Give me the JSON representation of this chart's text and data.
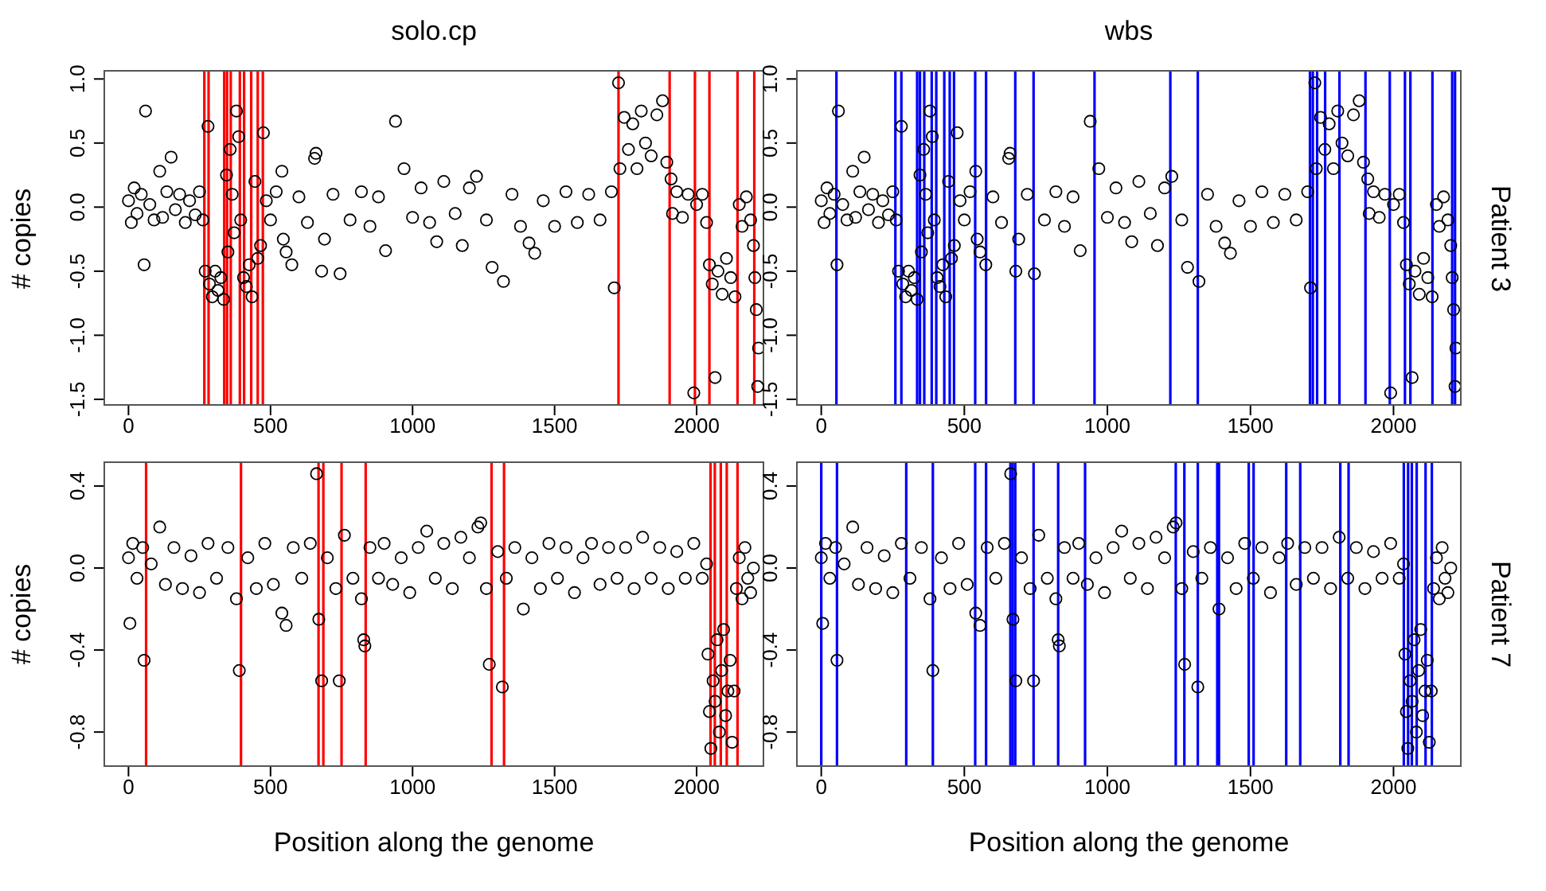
{
  "chart_data": [
    {
      "type": "scatter",
      "title": "solo.cp",
      "ylabel": "# copies",
      "marker": "circle",
      "color": "#000000",
      "x": [
        0,
        10,
        20,
        30,
        45,
        55,
        60,
        75,
        90,
        110,
        120,
        135,
        150,
        165,
        180,
        200,
        215,
        235,
        250,
        262,
        270,
        280,
        285,
        295,
        305,
        315,
        325,
        335,
        345,
        350,
        358,
        365,
        372,
        380,
        388,
        395,
        405,
        415,
        425,
        435,
        445,
        455,
        465,
        475,
        485,
        500,
        520,
        540,
        545,
        555,
        575,
        600,
        630,
        655,
        660,
        680,
        690,
        720,
        745,
        780,
        820,
        850,
        880,
        905,
        940,
        970,
        1000,
        1030,
        1060,
        1085,
        1110,
        1150,
        1175,
        1200,
        1225,
        1260,
        1280,
        1320,
        1350,
        1380,
        1410,
        1430,
        1460,
        1500,
        1540,
        1580,
        1620,
        1660,
        1700,
        1710,
        1725,
        1730,
        1745,
        1760,
        1775,
        1790,
        1805,
        1820,
        1840,
        1860,
        1880,
        1895,
        1910,
        1915,
        1930,
        1950,
        1970,
        1990,
        2000,
        2020,
        2035,
        2045,
        2055,
        2065,
        2075,
        2090,
        2105,
        2120,
        2135,
        2150,
        2160,
        2175,
        2190,
        2200,
        2205,
        2210,
        2215,
        2218
      ],
      "values": [
        0.05,
        -0.12,
        0.15,
        -0.05,
        0.1,
        -0.45,
        0.75,
        0.02,
        -0.1,
        0.28,
        -0.08,
        0.12,
        0.39,
        -0.02,
        0.1,
        -0.12,
        0.05,
        -0.06,
        0.12,
        -0.1,
        -0.5,
        0.63,
        -0.6,
        -0.7,
        -0.5,
        -0.65,
        -0.55,
        -0.72,
        0.25,
        -0.35,
        0.45,
        0.1,
        -0.2,
        0.75,
        0.55,
        -0.1,
        -0.55,
        -0.62,
        -0.45,
        -0.7,
        0.2,
        -0.4,
        -0.3,
        0.58,
        0.05,
        -0.1,
        0.12,
        0.28,
        -0.25,
        -0.35,
        -0.45,
        0.08,
        -0.12,
        0.38,
        0.42,
        -0.5,
        -0.25,
        0.1,
        -0.52,
        -0.1,
        0.12,
        -0.15,
        0.08,
        -0.34,
        0.67,
        0.3,
        -0.08,
        0.15,
        -0.12,
        -0.27,
        0.2,
        -0.05,
        -0.3,
        0.15,
        0.24,
        -0.1,
        -0.47,
        -0.58,
        0.1,
        -0.15,
        -0.28,
        -0.36,
        0.05,
        -0.15,
        0.12,
        -0.12,
        0.1,
        -0.1,
        0.12,
        -0.63,
        0.97,
        0.3,
        0.7,
        0.45,
        0.65,
        0.3,
        0.75,
        0.5,
        0.4,
        0.72,
        0.83,
        0.35,
        0.22,
        -0.05,
        0.12,
        -0.08,
        0.1,
        -1.45,
        0.02,
        0.1,
        -0.12,
        -0.45,
        -0.6,
        -1.33,
        -0.5,
        -0.68,
        -0.4,
        -0.55,
        -0.7,
        0.02,
        -0.15,
        0.08,
        -0.1,
        -0.3,
        -0.55,
        -0.8,
        -1.4,
        -1.1
      ],
      "xlim": [
        -88,
        2238
      ],
      "xticks": [
        0,
        500,
        1000,
        1500,
        2000
      ],
      "ylim": [
        -1.55,
        1.07
      ],
      "yticks": [
        {
          "value": -1.5,
          "label": "-1.5"
        },
        {
          "value": -1,
          "label": "-1.0"
        },
        {
          "value": -0.5,
          "label": "-0.5"
        },
        {
          "value": 0,
          "label": "0.0"
        },
        {
          "value": 0.5,
          "label": "0.5"
        },
        {
          "value": 1,
          "label": "1.0"
        }
      ],
      "ref_lines": [
        {
          "axis": "x",
          "value": 267,
          "color": "#ff0000"
        },
        {
          "axis": "x",
          "value": 282,
          "color": "#ff0000"
        },
        {
          "axis": "x",
          "value": 337,
          "color": "#ff0000"
        },
        {
          "axis": "x",
          "value": 347,
          "color": "#ff0000"
        },
        {
          "axis": "x",
          "value": 360,
          "color": "#ff0000"
        },
        {
          "axis": "x",
          "value": 392,
          "color": "#ff0000"
        },
        {
          "axis": "x",
          "value": 407,
          "color": "#ff0000"
        },
        {
          "axis": "x",
          "value": 432,
          "color": "#ff0000"
        },
        {
          "axis": "x",
          "value": 455,
          "color": "#ff0000"
        },
        {
          "axis": "x",
          "value": 473,
          "color": "#ff0000"
        },
        {
          "axis": "x",
          "value": 1725,
          "color": "#ff0000"
        },
        {
          "axis": "x",
          "value": 1905,
          "color": "#ff0000"
        },
        {
          "axis": "x",
          "value": 1994,
          "color": "#ff0000"
        },
        {
          "axis": "x",
          "value": 2045,
          "color": "#ff0000"
        },
        {
          "axis": "x",
          "value": 2144,
          "color": "#ff0000"
        },
        {
          "axis": "x",
          "value": 2203,
          "color": "#ff0000"
        }
      ]
    },
    {
      "type": "scatter",
      "title": "wbs",
      "annotations": [
        "Patient 3"
      ],
      "marker": "circle",
      "color": "#000000",
      "x": [
        0,
        10,
        20,
        30,
        45,
        55,
        60,
        75,
        90,
        110,
        120,
        135,
        150,
        165,
        180,
        200,
        215,
        235,
        250,
        262,
        270,
        280,
        285,
        295,
        305,
        315,
        325,
        335,
        345,
        350,
        358,
        365,
        372,
        380,
        388,
        395,
        405,
        415,
        425,
        435,
        445,
        455,
        465,
        475,
        485,
        500,
        520,
        540,
        545,
        555,
        575,
        600,
        630,
        655,
        660,
        680,
        690,
        720,
        745,
        780,
        820,
        850,
        880,
        905,
        940,
        970,
        1000,
        1030,
        1060,
        1085,
        1110,
        1150,
        1175,
        1200,
        1225,
        1260,
        1280,
        1320,
        1350,
        1380,
        1410,
        1430,
        1460,
        1500,
        1540,
        1580,
        1620,
        1660,
        1700,
        1710,
        1725,
        1730,
        1745,
        1760,
        1775,
        1790,
        1805,
        1820,
        1840,
        1860,
        1880,
        1895,
        1910,
        1915,
        1930,
        1950,
        1970,
        1990,
        2000,
        2020,
        2035,
        2045,
        2055,
        2065,
        2075,
        2090,
        2105,
        2120,
        2135,
        2150,
        2160,
        2175,
        2190,
        2200,
        2205,
        2210,
        2215,
        2218
      ],
      "values": [
        0.05,
        -0.12,
        0.15,
        -0.05,
        0.1,
        -0.45,
        0.75,
        0.02,
        -0.1,
        0.28,
        -0.08,
        0.12,
        0.39,
        -0.02,
        0.1,
        -0.12,
        0.05,
        -0.06,
        0.12,
        -0.1,
        -0.5,
        0.63,
        -0.6,
        -0.7,
        -0.5,
        -0.65,
        -0.55,
        -0.72,
        0.25,
        -0.35,
        0.45,
        0.1,
        -0.2,
        0.75,
        0.55,
        -0.1,
        -0.55,
        -0.62,
        -0.45,
        -0.7,
        0.2,
        -0.4,
        -0.3,
        0.58,
        0.05,
        -0.1,
        0.12,
        0.28,
        -0.25,
        -0.35,
        -0.45,
        0.08,
        -0.12,
        0.38,
        0.42,
        -0.5,
        -0.25,
        0.1,
        -0.52,
        -0.1,
        0.12,
        -0.15,
        0.08,
        -0.34,
        0.67,
        0.3,
        -0.08,
        0.15,
        -0.12,
        -0.27,
        0.2,
        -0.05,
        -0.3,
        0.15,
        0.24,
        -0.1,
        -0.47,
        -0.58,
        0.1,
        -0.15,
        -0.28,
        -0.36,
        0.05,
        -0.15,
        0.12,
        -0.12,
        0.1,
        -0.1,
        0.12,
        -0.63,
        0.97,
        0.3,
        0.7,
        0.45,
        0.65,
        0.3,
        0.75,
        0.5,
        0.4,
        0.72,
        0.83,
        0.35,
        0.22,
        -0.05,
        0.12,
        -0.08,
        0.1,
        -1.45,
        0.02,
        0.1,
        -0.12,
        -0.45,
        -0.6,
        -1.33,
        -0.5,
        -0.68,
        -0.4,
        -0.55,
        -0.7,
        0.02,
        -0.15,
        0.08,
        -0.1,
        -0.3,
        -0.55,
        -0.8,
        -1.4,
        -1.1
      ],
      "xlim": [
        -88,
        2238
      ],
      "xticks": [
        0,
        500,
        1000,
        1500,
        2000
      ],
      "ylim": [
        -1.55,
        1.07
      ],
      "yticks": [
        {
          "value": -1.5,
          "label": "-1.5"
        },
        {
          "value": -1,
          "label": "-1.0"
        },
        {
          "value": -0.5,
          "label": "-0.5"
        },
        {
          "value": 0,
          "label": "0.0"
        },
        {
          "value": 0.5,
          "label": "0.5"
        },
        {
          "value": 1,
          "label": "1.0"
        }
      ],
      "ref_lines": [
        {
          "axis": "x",
          "value": 53,
          "color": "#0000ff"
        },
        {
          "axis": "x",
          "value": 259,
          "color": "#0000ff"
        },
        {
          "axis": "x",
          "value": 280,
          "color": "#0000ff"
        },
        {
          "axis": "x",
          "value": 335,
          "color": "#0000ff"
        },
        {
          "axis": "x",
          "value": 345,
          "color": "#0000ff"
        },
        {
          "axis": "x",
          "value": 360,
          "color": "#0000ff"
        },
        {
          "axis": "x",
          "value": 386,
          "color": "#0000ff"
        },
        {
          "axis": "x",
          "value": 402,
          "color": "#0000ff"
        },
        {
          "axis": "x",
          "value": 430,
          "color": "#0000ff"
        },
        {
          "axis": "x",
          "value": 449,
          "color": "#0000ff"
        },
        {
          "axis": "x",
          "value": 464,
          "color": "#0000ff"
        },
        {
          "axis": "x",
          "value": 538,
          "color": "#0000ff"
        },
        {
          "axis": "x",
          "value": 576,
          "color": "#0000ff"
        },
        {
          "axis": "x",
          "value": 678,
          "color": "#0000ff"
        },
        {
          "axis": "x",
          "value": 742,
          "color": "#0000ff"
        },
        {
          "axis": "x",
          "value": 955,
          "color": "#0000ff"
        },
        {
          "axis": "x",
          "value": 1220,
          "color": "#0000ff"
        },
        {
          "axis": "x",
          "value": 1316,
          "color": "#0000ff"
        },
        {
          "axis": "x",
          "value": 1708,
          "color": "#0000ff"
        },
        {
          "axis": "x",
          "value": 1718,
          "color": "#0000ff"
        },
        {
          "axis": "x",
          "value": 1733,
          "color": "#0000ff"
        },
        {
          "axis": "x",
          "value": 1761,
          "color": "#0000ff"
        },
        {
          "axis": "x",
          "value": 1811,
          "color": "#0000ff"
        },
        {
          "axis": "x",
          "value": 1902,
          "color": "#0000ff"
        },
        {
          "axis": "x",
          "value": 1987,
          "color": "#0000ff"
        },
        {
          "axis": "x",
          "value": 2040,
          "color": "#0000ff"
        },
        {
          "axis": "x",
          "value": 2059,
          "color": "#0000ff"
        },
        {
          "axis": "x",
          "value": 2136,
          "color": "#0000ff"
        },
        {
          "axis": "x",
          "value": 2205,
          "color": "#0000ff"
        },
        {
          "axis": "x",
          "value": 2215,
          "color": "#0000ff"
        }
      ]
    },
    {
      "type": "scatter",
      "ylabel": "# copies",
      "xlabel": "Position along the genome",
      "marker": "circle",
      "color": "#000000",
      "x": [
        0,
        5,
        15,
        30,
        50,
        55,
        80,
        110,
        130,
        160,
        190,
        220,
        250,
        280,
        310,
        350,
        380,
        390,
        420,
        450,
        480,
        510,
        540,
        555,
        580,
        610,
        640,
        662,
        670,
        680,
        700,
        730,
        742,
        760,
        790,
        820,
        828,
        832,
        850,
        880,
        900,
        930,
        960,
        990,
        1020,
        1050,
        1080,
        1110,
        1140,
        1170,
        1200,
        1230,
        1240,
        1260,
        1270,
        1300,
        1316,
        1330,
        1360,
        1390,
        1420,
        1450,
        1480,
        1510,
        1540,
        1570,
        1600,
        1630,
        1660,
        1690,
        1720,
        1750,
        1780,
        1810,
        1840,
        1870,
        1900,
        1930,
        1960,
        1990,
        2020,
        2035,
        2040,
        2045,
        2050,
        2058,
        2065,
        2072,
        2080,
        2088,
        2095,
        2102,
        2110,
        2118,
        2125,
        2132,
        2140,
        2150,
        2160,
        2170,
        2180,
        2190,
        2200
      ],
      "values": [
        0.05,
        -0.27,
        0.12,
        -0.05,
        0.1,
        -0.45,
        0.02,
        0.2,
        -0.08,
        0.1,
        -0.1,
        0.06,
        -0.12,
        0.12,
        -0.05,
        0.1,
        -0.15,
        -0.5,
        0.05,
        -0.1,
        0.12,
        -0.08,
        -0.22,
        -0.28,
        0.1,
        -0.05,
        0.12,
        0.46,
        -0.25,
        -0.55,
        0.05,
        -0.1,
        -0.55,
        0.16,
        -0.05,
        -0.15,
        -0.35,
        -0.38,
        0.1,
        -0.05,
        0.12,
        -0.08,
        0.05,
        -0.12,
        0.1,
        0.18,
        -0.05,
        0.12,
        -0.1,
        0.15,
        0.05,
        0.2,
        0.22,
        -0.1,
        -0.47,
        0.08,
        -0.58,
        -0.05,
        0.1,
        -0.2,
        0.05,
        -0.1,
        0.12,
        -0.05,
        0.1,
        -0.12,
        0.05,
        0.12,
        -0.08,
        0.1,
        -0.05,
        0.1,
        -0.1,
        0.15,
        -0.05,
        0.1,
        -0.1,
        0.08,
        -0.05,
        0.12,
        -0.05,
        0.02,
        -0.42,
        -0.7,
        -0.88,
        -0.55,
        -0.65,
        -0.35,
        -0.8,
        -0.5,
        -0.3,
        -0.72,
        -0.6,
        -0.45,
        -0.85,
        -0.6,
        -0.1,
        0.05,
        -0.15,
        0.1,
        -0.05,
        -0.12,
        0
      ],
      "xlim": [
        -88,
        2238
      ],
      "xticks": [
        0,
        500,
        1000,
        1500,
        2000
      ],
      "ylim": [
        -0.97,
        0.52
      ],
      "yticks": [
        {
          "value": -0.8,
          "label": "-0.8"
        },
        {
          "value": -0.4,
          "label": "-0.4"
        },
        {
          "value": 0,
          "label": "0.0"
        },
        {
          "value": 0.4,
          "label": "0.4"
        }
      ],
      "ref_lines": [
        {
          "axis": "x",
          "value": 62,
          "color": "#ff0000"
        },
        {
          "axis": "x",
          "value": 396,
          "color": "#ff0000"
        },
        {
          "axis": "x",
          "value": 669,
          "color": "#ff0000"
        },
        {
          "axis": "x",
          "value": 686,
          "color": "#ff0000"
        },
        {
          "axis": "x",
          "value": 750,
          "color": "#ff0000"
        },
        {
          "axis": "x",
          "value": 835,
          "color": "#ff0000"
        },
        {
          "axis": "x",
          "value": 1278,
          "color": "#ff0000"
        },
        {
          "axis": "x",
          "value": 1322,
          "color": "#ff0000"
        },
        {
          "axis": "x",
          "value": 2049,
          "color": "#ff0000"
        },
        {
          "axis": "x",
          "value": 2064,
          "color": "#ff0000"
        },
        {
          "axis": "x",
          "value": 2085,
          "color": "#ff0000"
        },
        {
          "axis": "x",
          "value": 2106,
          "color": "#ff0000"
        },
        {
          "axis": "x",
          "value": 2144,
          "color": "#ff0000"
        }
      ]
    },
    {
      "type": "scatter",
      "xlabel": "Position along the genome",
      "annotations": [
        "Patient 7"
      ],
      "marker": "circle",
      "color": "#000000",
      "x": [
        0,
        5,
        15,
        30,
        50,
        55,
        80,
        110,
        130,
        160,
        190,
        220,
        250,
        280,
        310,
        350,
        380,
        390,
        420,
        450,
        480,
        510,
        540,
        555,
        580,
        610,
        640,
        662,
        670,
        680,
        700,
        730,
        742,
        760,
        790,
        820,
        828,
        832,
        850,
        880,
        900,
        930,
        960,
        990,
        1020,
        1050,
        1080,
        1110,
        1140,
        1170,
        1200,
        1230,
        1240,
        1260,
        1270,
        1300,
        1316,
        1330,
        1360,
        1390,
        1420,
        1450,
        1480,
        1510,
        1540,
        1570,
        1600,
        1630,
        1660,
        1690,
        1720,
        1750,
        1780,
        1810,
        1840,
        1870,
        1900,
        1930,
        1960,
        1990,
        2020,
        2035,
        2040,
        2045,
        2050,
        2058,
        2065,
        2072,
        2080,
        2088,
        2095,
        2102,
        2110,
        2118,
        2125,
        2132,
        2140,
        2150,
        2160,
        2170,
        2180,
        2190,
        2200
      ],
      "values": [
        0.05,
        -0.27,
        0.12,
        -0.05,
        0.1,
        -0.45,
        0.02,
        0.2,
        -0.08,
        0.1,
        -0.1,
        0.06,
        -0.12,
        0.12,
        -0.05,
        0.1,
        -0.15,
        -0.5,
        0.05,
        -0.1,
        0.12,
        -0.08,
        -0.22,
        -0.28,
        0.1,
        -0.05,
        0.12,
        0.46,
        -0.25,
        -0.55,
        0.05,
        -0.1,
        -0.55,
        0.16,
        -0.05,
        -0.15,
        -0.35,
        -0.38,
        0.1,
        -0.05,
        0.12,
        -0.08,
        0.05,
        -0.12,
        0.1,
        0.18,
        -0.05,
        0.12,
        -0.1,
        0.15,
        0.05,
        0.2,
        0.22,
        -0.1,
        -0.47,
        0.08,
        -0.58,
        -0.05,
        0.1,
        -0.2,
        0.05,
        -0.1,
        0.12,
        -0.05,
        0.1,
        -0.12,
        0.05,
        0.12,
        -0.08,
        0.1,
        -0.05,
        0.1,
        -0.1,
        0.15,
        -0.05,
        0.1,
        -0.1,
        0.08,
        -0.05,
        0.12,
        -0.05,
        0.02,
        -0.42,
        -0.7,
        -0.88,
        -0.55,
        -0.65,
        -0.35,
        -0.8,
        -0.5,
        -0.3,
        -0.72,
        -0.6,
        -0.45,
        -0.85,
        -0.6,
        -0.1,
        0.05,
        -0.15,
        0.1,
        -0.05,
        -0.12,
        0
      ],
      "xlim": [
        -88,
        2238
      ],
      "xticks": [
        0,
        500,
        1000,
        1500,
        2000
      ],
      "ylim": [
        -0.97,
        0.52
      ],
      "yticks": [
        {
          "value": -0.8,
          "label": "-0.8"
        },
        {
          "value": -0.4,
          "label": "-0.4"
        },
        {
          "value": 0,
          "label": "0.0"
        },
        {
          "value": 0.4,
          "label": "0.4"
        }
      ],
      "ref_lines": [
        {
          "axis": "x",
          "value": 0,
          "color": "#0000ff"
        },
        {
          "axis": "x",
          "value": 55,
          "color": "#0000ff"
        },
        {
          "axis": "x",
          "value": 297,
          "color": "#0000ff"
        },
        {
          "axis": "x",
          "value": 390,
          "color": "#0000ff"
        },
        {
          "axis": "x",
          "value": 538,
          "color": "#0000ff"
        },
        {
          "axis": "x",
          "value": 576,
          "color": "#0000ff"
        },
        {
          "axis": "x",
          "value": 661,
          "color": "#0000ff"
        },
        {
          "axis": "x",
          "value": 669,
          "color": "#0000ff"
        },
        {
          "axis": "x",
          "value": 678,
          "color": "#0000ff"
        },
        {
          "axis": "x",
          "value": 742,
          "color": "#0000ff"
        },
        {
          "axis": "x",
          "value": 828,
          "color": "#0000ff"
        },
        {
          "axis": "x",
          "value": 922,
          "color": "#0000ff"
        },
        {
          "axis": "x",
          "value": 1239,
          "color": "#0000ff"
        },
        {
          "axis": "x",
          "value": 1269,
          "color": "#0000ff"
        },
        {
          "axis": "x",
          "value": 1316,
          "color": "#0000ff"
        },
        {
          "axis": "x",
          "value": 1384,
          "color": "#0000ff"
        },
        {
          "axis": "x",
          "value": 1390,
          "color": "#0000ff"
        },
        {
          "axis": "x",
          "value": 1494,
          "color": "#0000ff"
        },
        {
          "axis": "x",
          "value": 1511,
          "color": "#0000ff"
        },
        {
          "axis": "x",
          "value": 1625,
          "color": "#0000ff"
        },
        {
          "axis": "x",
          "value": 1674,
          "color": "#0000ff"
        },
        {
          "axis": "x",
          "value": 1814,
          "color": "#0000ff"
        },
        {
          "axis": "x",
          "value": 1843,
          "color": "#0000ff"
        },
        {
          "axis": "x",
          "value": 2036,
          "color": "#0000ff"
        },
        {
          "axis": "x",
          "value": 2051,
          "color": "#0000ff"
        },
        {
          "axis": "x",
          "value": 2064,
          "color": "#0000ff"
        },
        {
          "axis": "x",
          "value": 2081,
          "color": "#0000ff"
        },
        {
          "axis": "x",
          "value": 2112,
          "color": "#0000ff"
        },
        {
          "axis": "x",
          "value": 2134,
          "color": "#0000ff"
        }
      ]
    }
  ]
}
